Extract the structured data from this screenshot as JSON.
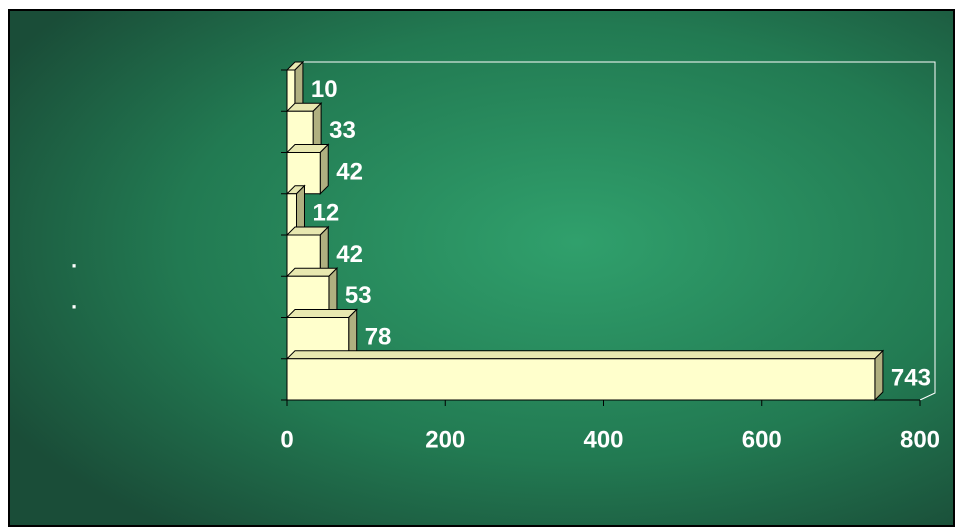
{
  "chart_data": {
    "type": "hbar-3d",
    "categories": [
      null,
      null,
      null,
      null,
      ".",
      ".",
      null,
      null
    ],
    "values": [
      10,
      33,
      42,
      12,
      42,
      53,
      78,
      743
    ],
    "color": "#ffffcc",
    "xlim": [
      0,
      800
    ],
    "xticks": [
      0,
      200,
      400,
      600,
      800
    ]
  }
}
